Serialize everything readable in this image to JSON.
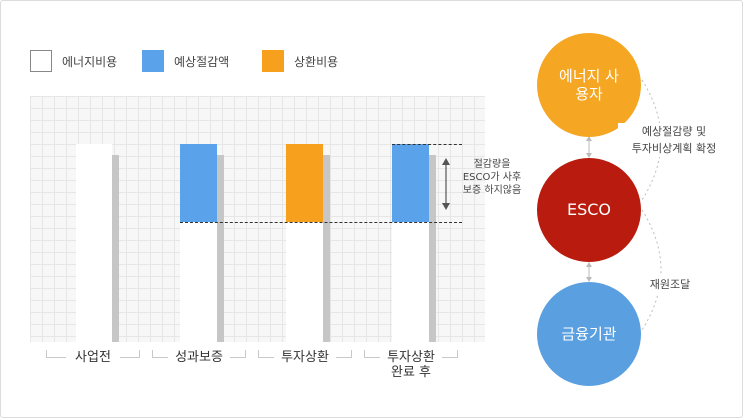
{
  "legend": {
    "items": [
      {
        "label": "에너지비용",
        "color": "#ffffff"
      },
      {
        "label": "예상절감액",
        "color": "#5aa3ea"
      },
      {
        "label": "상환비용",
        "color": "#f7a01e"
      }
    ]
  },
  "chart": {
    "categories": [
      "사업전",
      "성과보증",
      "투자상환",
      "투자상환\n완료 후"
    ],
    "note": "절감량을 ESCO가 사후보증 하지않음"
  },
  "flow": {
    "user_label": "에너지 사용자",
    "esco_label": "ESCO",
    "finance_label": "금융기관",
    "user_esco_label": "예상절감량 및\n투자비상계획 확정",
    "esco_finance_label": "재원조달"
  }
}
